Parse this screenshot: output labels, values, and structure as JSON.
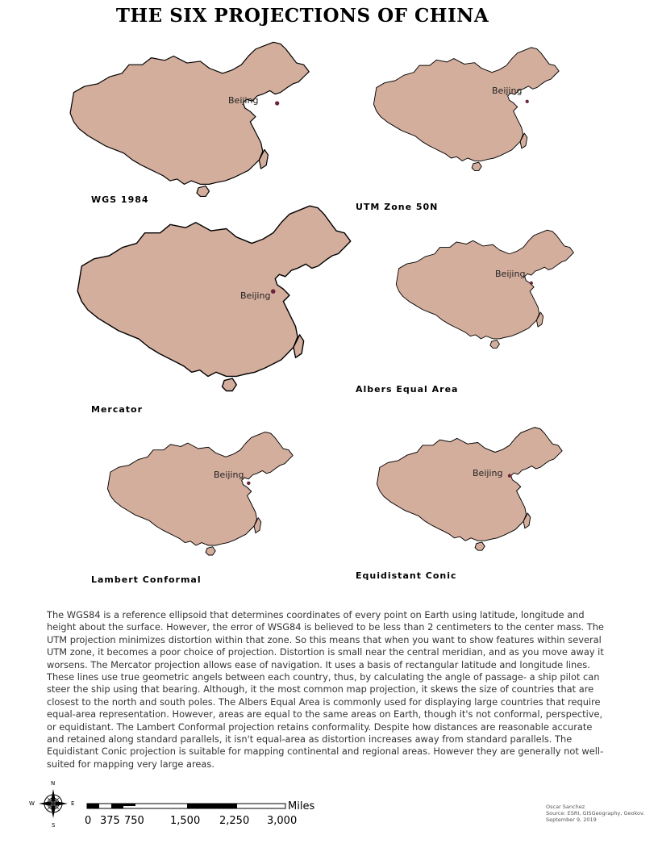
{
  "title": "THE SIX PROJECTIONS OF CHINA",
  "city_label": "Beijing",
  "colors": {
    "land": "#d4ae9d",
    "city_dot": "#6b2338",
    "outline": "#000000"
  },
  "projections": [
    {
      "name": "WGS 1984"
    },
    {
      "name": "UTM Zone 50N"
    },
    {
      "name": "Mercator"
    },
    {
      "name": "Albers Equal Area"
    },
    {
      "name": "Lambert Conformal"
    },
    {
      "name": "Equidistant Conic"
    }
  ],
  "description": "The WGS84 is a reference ellipsoid that determines coordinates of every point on Earth using latitude, longitude and height about the surface. However, the error of WSG84 is believed to be less than 2 centimeters to the center mass. The UTM projection minimizes distortion within that zone. So this means that when you want to show features within several UTM zone, it becomes a poor choice of projection. Distortion is small near the central meridian, and as you move away it worsens. The Mercator projection allows ease of navigation. It uses a basis of rectangular latitude and longitude lines. These lines use true geometric angels between each country, thus, by calculating the angle of passage- a ship pilot can steer the ship using that bearing. Although, it the most common map projection, it skews the size of countries that are closest to the north and south poles. The Albers Equal Area is commonly used for displaying large countries that require equal-area representation. However, areas are equal to the same areas on Earth, though it's not conformal, perspective, or equidistant. The Lambert Conformal projection retains conformality. Despite how distances are reasonable accurate and retained along standard parallels, it isn't equal-area as distortion increases away from standard parallels. The Equidistant Conic projection is suitable for mapping continental and regional areas. However they are generally not well-suited for mapping very large areas.",
  "compass": {
    "n": "N",
    "s": "S",
    "e": "E",
    "w": "W"
  },
  "scale": {
    "unit": "Miles",
    "ticks": [
      "0",
      "375",
      "750",
      "1,500",
      "2,250",
      "3,000"
    ]
  },
  "credits": {
    "author": "Oscar Sanchez",
    "source": "Source: ESRI, GISGeography, Geokov.",
    "date": "September 9, 2019"
  }
}
